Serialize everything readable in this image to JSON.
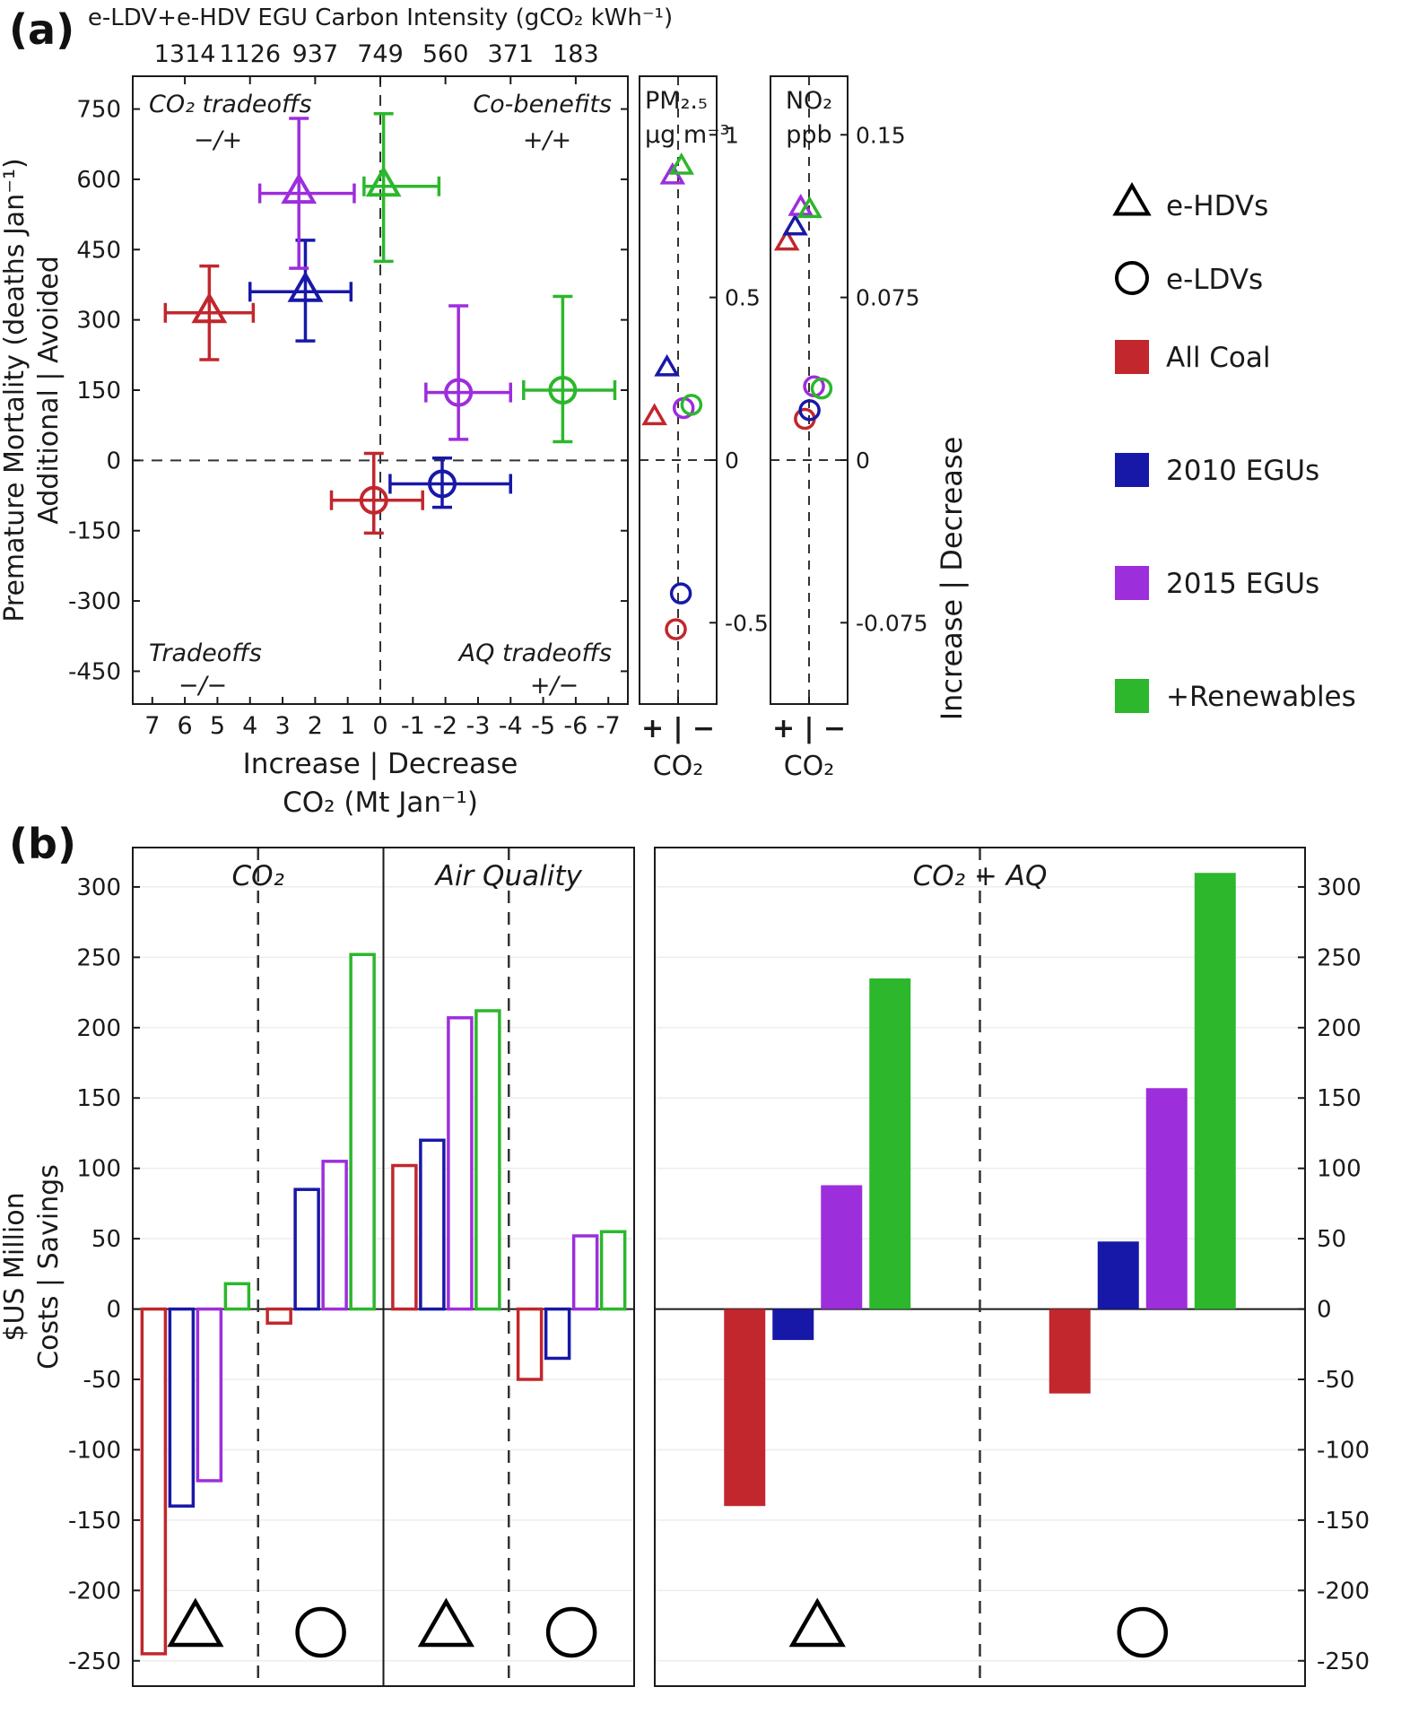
{
  "figure": {
    "panel_a_label": "(a)",
    "panel_b_label": "(b)"
  },
  "colors": {
    "all_coal": "#c1272d",
    "egu_2010": "#1818a8",
    "egu_2015": "#9d2edb",
    "renewables": "#2cb72c",
    "axis": "#1a1a1a",
    "dashed": "#333333",
    "grid": "#ededed",
    "black": "#000000"
  },
  "legend": {
    "marker_items": [
      {
        "marker": "triangle",
        "label": "e-HDVs"
      },
      {
        "marker": "circle",
        "label": "e-LDVs"
      }
    ],
    "color_items": [
      {
        "color_key": "all_coal",
        "label": "All Coal"
      },
      {
        "color_key": "egu_2010",
        "label": "2010 EGUs"
      },
      {
        "color_key": "egu_2015",
        "label": "2015 EGUs"
      },
      {
        "color_key": "renewables",
        "label": "+Renewables"
      }
    ],
    "right_axis_label": "Increase | Decrease"
  },
  "chart_data": [
    {
      "id": "mortality-co2",
      "type": "scatter",
      "top_axis": {
        "title": "e-LDV+e-HDV EGU Carbon Intensity (gCO₂ kWh⁻¹)",
        "ticks": [
          {
            "x": 6,
            "label": "1314"
          },
          {
            "x": 4,
            "label": "1126"
          },
          {
            "x": 2,
            "label": "937"
          },
          {
            "x": 0,
            "label": "749"
          },
          {
            "x": -2,
            "label": "560"
          },
          {
            "x": -4,
            "label": "371"
          },
          {
            "x": -6,
            "label": "183"
          }
        ]
      },
      "xlabel": [
        "Increase | Decrease",
        "CO₂ (Mt Jan⁻¹)"
      ],
      "ylabel": [
        "Premature Mortality (deaths Jan⁻¹)",
        "Additional | Avoided"
      ],
      "xlim": [
        7.6,
        -7.6
      ],
      "ylim": [
        -520,
        820
      ],
      "x_ticks": [
        7,
        6,
        5,
        4,
        3,
        2,
        1,
        0,
        -1,
        -2,
        -3,
        -4,
        -5,
        -6,
        -7
      ],
      "y_ticks": [
        750,
        600,
        450,
        300,
        150,
        0,
        -150,
        -300,
        -450
      ],
      "quadrant_labels": [
        {
          "position": "top-left",
          "lines": [
            "CO₂ tradeoffs",
            "−/+"
          ]
        },
        {
          "position": "top-right",
          "lines": [
            "Co-benefits",
            "+/+"
          ]
        },
        {
          "position": "bottom-left",
          "lines": [
            "Tradeoffs",
            "−/−"
          ]
        },
        {
          "position": "bottom-right",
          "lines": [
            "AQ tradeoffs",
            "+/−"
          ]
        }
      ],
      "series": [
        {
          "scenario": "All Coal",
          "vehicle": "e-HDVs",
          "marker": "triangle",
          "color_key": "all_coal",
          "x": 5.25,
          "y": 315,
          "x_range": [
            6.6,
            3.9
          ],
          "y_range": [
            215,
            415
          ]
        },
        {
          "scenario": "2010 EGUs",
          "vehicle": "e-HDVs",
          "marker": "triangle",
          "color_key": "egu_2010",
          "x": 2.3,
          "y": 360,
          "x_range": [
            4.0,
            0.9
          ],
          "y_range": [
            255,
            470
          ]
        },
        {
          "scenario": "2015 EGUs",
          "vehicle": "e-HDVs",
          "marker": "triangle",
          "color_key": "egu_2015",
          "x": 2.5,
          "y": 570,
          "x_range": [
            3.7,
            0.8
          ],
          "y_range": [
            410,
            730
          ]
        },
        {
          "scenario": "+Renewables",
          "vehicle": "e-HDVs",
          "marker": "triangle",
          "color_key": "renewables",
          "x": -0.1,
          "y": 585,
          "x_range": [
            0.5,
            -1.8
          ],
          "y_range": [
            425,
            740
          ]
        },
        {
          "scenario": "All Coal",
          "vehicle": "e-LDVs",
          "marker": "circle",
          "color_key": "all_coal",
          "x": 0.2,
          "y": -85,
          "x_range": [
            1.5,
            -1.3
          ],
          "y_range": [
            -155,
            15
          ]
        },
        {
          "scenario": "2010 EGUs",
          "vehicle": "e-LDVs",
          "marker": "circle",
          "color_key": "egu_2010",
          "x": -1.9,
          "y": -50,
          "x_range": [
            -0.3,
            -4.0
          ],
          "y_range": [
            -100,
            5
          ]
        },
        {
          "scenario": "2015 EGUs",
          "vehicle": "e-LDVs",
          "marker": "circle",
          "color_key": "egu_2015",
          "x": -2.4,
          "y": 145,
          "x_range": [
            -1.4,
            -4.0
          ],
          "y_range": [
            45,
            330
          ]
        },
        {
          "scenario": "+Renewables",
          "vehicle": "e-LDVs",
          "marker": "circle",
          "color_key": "renewables",
          "x": -5.6,
          "y": 150,
          "x_range": [
            -4.4,
            -7.2
          ],
          "y_range": [
            40,
            350
          ]
        }
      ]
    },
    {
      "id": "pm25",
      "type": "scatter",
      "title": [
        "PM₂.₅",
        "μg m⁻³"
      ],
      "xlabel": [
        "+ | −",
        "CO₂"
      ],
      "ylim": [
        -0.75,
        1.18
      ],
      "y_ticks": [
        1,
        0.5,
        0,
        -0.5
      ],
      "points": [
        {
          "scenario": "All Coal",
          "vehicle": "e-HDVs",
          "marker": "triangle",
          "color_key": "all_coal",
          "x": -0.85,
          "y": 0.13
        },
        {
          "scenario": "2010 EGUs",
          "vehicle": "e-HDVs",
          "marker": "triangle",
          "color_key": "egu_2010",
          "x": -0.4,
          "y": 0.28
        },
        {
          "scenario": "2015 EGUs",
          "vehicle": "e-HDVs",
          "marker": "triangle",
          "color_key": "egu_2015",
          "x": -0.2,
          "y": 0.87
        },
        {
          "scenario": "+Renewables",
          "vehicle": "e-HDVs",
          "marker": "triangle",
          "color_key": "renewables",
          "x": 0.12,
          "y": 0.9
        },
        {
          "scenario": "All Coal",
          "vehicle": "e-LDVs",
          "marker": "circle",
          "color_key": "all_coal",
          "x": -0.08,
          "y": -0.52
        },
        {
          "scenario": "2010 EGUs",
          "vehicle": "e-LDVs",
          "marker": "circle",
          "color_key": "egu_2010",
          "x": 0.1,
          "y": -0.41
        },
        {
          "scenario": "2015 EGUs",
          "vehicle": "e-LDVs",
          "marker": "circle",
          "color_key": "egu_2015",
          "x": 0.2,
          "y": 0.16
        },
        {
          "scenario": "+Renewables",
          "vehicle": "e-LDVs",
          "marker": "circle",
          "color_key": "renewables",
          "x": 0.48,
          "y": 0.17
        }
      ]
    },
    {
      "id": "no2",
      "type": "scatter",
      "title": [
        "NO₂",
        "ppb"
      ],
      "xlabel": [
        "+ | −",
        "CO₂"
      ],
      "ylim": [
        -0.1125,
        0.177
      ],
      "y_ticks": [
        0.15,
        0.075,
        0,
        -0.075
      ],
      "points": [
        {
          "scenario": "All Coal",
          "vehicle": "e-HDVs",
          "marker": "triangle",
          "color_key": "all_coal",
          "x": -0.8,
          "y": 0.1
        },
        {
          "scenario": "2010 EGUs",
          "vehicle": "e-HDVs",
          "marker": "triangle",
          "color_key": "egu_2010",
          "x": -0.5,
          "y": 0.107
        },
        {
          "scenario": "2015 EGUs",
          "vehicle": "e-HDVs",
          "marker": "triangle",
          "color_key": "egu_2015",
          "x": -0.3,
          "y": 0.116
        },
        {
          "scenario": "+Renewables",
          "vehicle": "e-HDVs",
          "marker": "triangle",
          "color_key": "renewables",
          "x": 0.02,
          "y": 0.115
        },
        {
          "scenario": "All Coal",
          "vehicle": "e-LDVs",
          "marker": "circle",
          "color_key": "all_coal",
          "x": -0.15,
          "y": 0.019
        },
        {
          "scenario": "2010 EGUs",
          "vehicle": "e-LDVs",
          "marker": "circle",
          "color_key": "egu_2010",
          "x": 0.02,
          "y": 0.023
        },
        {
          "scenario": "2015 EGUs",
          "vehicle": "e-LDVs",
          "marker": "circle",
          "color_key": "egu_2015",
          "x": 0.18,
          "y": 0.034
        },
        {
          "scenario": "+Renewables",
          "vehicle": "e-LDVs",
          "marker": "circle",
          "color_key": "renewables",
          "x": 0.45,
          "y": 0.033
        }
      ]
    },
    {
      "id": "costs-individual",
      "type": "bar",
      "style": "outline",
      "ylabel": [
        "$US Million",
        "Costs | Savings"
      ],
      "ylim": [
        -268,
        328
      ],
      "y_ticks": [
        300,
        250,
        200,
        150,
        100,
        50,
        0,
        -50,
        -100,
        -150,
        -200,
        -250
      ],
      "tick_side": "left",
      "series_order": [
        "All Coal",
        "2010 EGUs",
        "2015 EGUs",
        "+Renewables"
      ],
      "color_order": [
        "all_coal",
        "egu_2010",
        "egu_2015",
        "renewables"
      ],
      "sections": [
        {
          "title": "CO₂",
          "groups": [
            {
              "vehicle": "e-HDVs",
              "marker": "triangle",
              "values": [
                -245,
                -140,
                -122,
                18
              ]
            },
            {
              "vehicle": "e-LDVs",
              "marker": "circle",
              "values": [
                -10,
                85,
                105,
                252
              ]
            }
          ]
        },
        {
          "title": "Air Quality",
          "groups": [
            {
              "vehicle": "e-HDVs",
              "marker": "triangle",
              "values": [
                102,
                120,
                207,
                212
              ]
            },
            {
              "vehicle": "e-LDVs",
              "marker": "circle",
              "values": [
                -50,
                -35,
                52,
                55
              ]
            }
          ]
        }
      ]
    },
    {
      "id": "costs-combined",
      "type": "bar",
      "style": "filled",
      "ylim": [
        -268,
        328
      ],
      "y_ticks": [
        300,
        250,
        200,
        150,
        100,
        50,
        0,
        -50,
        -100,
        -150,
        -200,
        -250
      ],
      "tick_side": "right",
      "series_order": [
        "All Coal",
        "2010 EGUs",
        "2015 EGUs",
        "+Renewables"
      ],
      "color_order": [
        "all_coal",
        "egu_2010",
        "egu_2015",
        "renewables"
      ],
      "sections": [
        {
          "title": "CO₂ + AQ",
          "groups": [
            {
              "vehicle": "e-HDVs",
              "marker": "triangle",
              "values": [
                -140,
                -22,
                88,
                235
              ]
            },
            {
              "vehicle": "e-LDVs",
              "marker": "circle",
              "values": [
                -60,
                48,
                157,
                310
              ]
            }
          ]
        }
      ]
    }
  ]
}
